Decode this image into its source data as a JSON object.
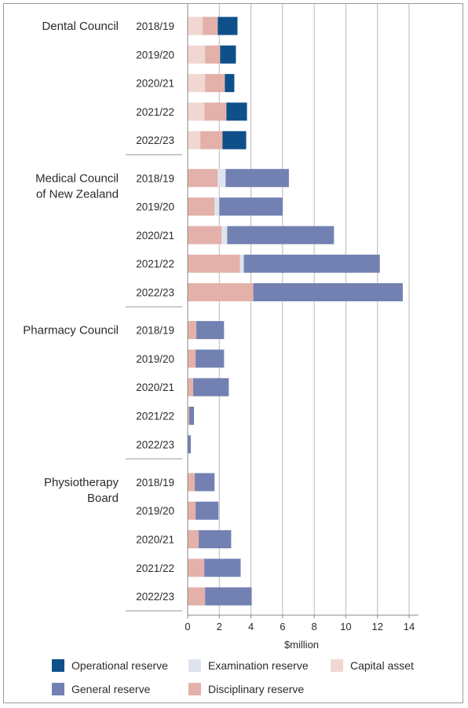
{
  "chart_data": {
    "type": "bar",
    "orientation": "horizontal",
    "stacked": true,
    "xlabel": "$million",
    "xlim": [
      0,
      14
    ],
    "xticks": [
      0,
      2,
      4,
      6,
      8,
      10,
      12,
      14
    ],
    "grid": true,
    "legend_position": "bottom",
    "groups": [
      {
        "name_lines": [
          "Dental Council"
        ],
        "categories": [
          "2018/19",
          "2019/20",
          "2020/21",
          "2021/22",
          "2022/23"
        ]
      },
      {
        "name_lines": [
          "Medical Council",
          "of New Zealand"
        ],
        "categories": [
          "2018/19",
          "2019/20",
          "2020/21",
          "2021/22",
          "2022/23"
        ]
      },
      {
        "name_lines": [
          "Pharmacy Council"
        ],
        "categories": [
          "2018/19",
          "2019/20",
          "2020/21",
          "2021/22",
          "2022/23"
        ]
      },
      {
        "name_lines": [
          "Physiotherapy",
          "Board"
        ],
        "categories": [
          "2018/19",
          "2019/20",
          "2020/21",
          "2021/22",
          "2022/23"
        ]
      }
    ],
    "series": [
      {
        "name": "Capital asset",
        "color": "#f1d7d2",
        "values": [
          [
            0.95,
            1.1,
            1.1,
            1.05,
            0.8
          ],
          [
            0,
            0,
            0,
            0,
            0
          ],
          [
            0,
            0,
            0,
            0,
            0
          ],
          [
            0,
            0,
            0,
            0,
            0
          ]
        ]
      },
      {
        "name": "Disciplinary reserve",
        "color": "#e3b1aa",
        "values": [
          [
            0.95,
            0.95,
            1.25,
            1.4,
            1.4
          ],
          [
            1.9,
            1.7,
            2.15,
            3.3,
            4.15
          ],
          [
            0.55,
            0.5,
            0.35,
            0.1,
            0
          ],
          [
            0.45,
            0.5,
            0.7,
            1.05,
            1.1
          ]
        ]
      },
      {
        "name": "Examination reserve",
        "color": "#dfe3ee",
        "values": [
          [
            0,
            0,
            0,
            0,
            0
          ],
          [
            0.5,
            0.3,
            0.35,
            0.25,
            0
          ],
          [
            0,
            0,
            0,
            0,
            0
          ],
          [
            0,
            0,
            0,
            0,
            0
          ]
        ]
      },
      {
        "name": "General reserve",
        "color": "#7281b2",
        "values": [
          [
            0,
            0,
            0,
            0,
            0
          ],
          [
            4.0,
            4.0,
            6.75,
            8.6,
            9.45
          ],
          [
            1.75,
            1.8,
            2.25,
            0.3,
            0.2
          ],
          [
            1.25,
            1.45,
            2.05,
            2.3,
            2.95
          ]
        ]
      },
      {
        "name": "Operational reserve",
        "color": "#0f508a",
        "values": [
          [
            1.25,
            1.0,
            0.6,
            1.3,
            1.5
          ],
          [
            0,
            0,
            0,
            0,
            0
          ],
          [
            0,
            0,
            0,
            0,
            0
          ],
          [
            0,
            0,
            0,
            0,
            0
          ]
        ]
      }
    ],
    "legend_rows": [
      [
        "Operational reserve",
        "Examination reserve",
        "Capital asset"
      ],
      [
        "General reserve",
        "Disciplinary reserve"
      ]
    ]
  }
}
